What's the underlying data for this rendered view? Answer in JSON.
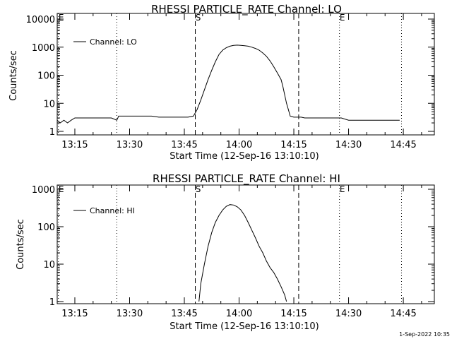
{
  "colors": {
    "background": "#ffffff",
    "foreground": "#000000"
  },
  "timestamp": "1-Sep-2022 10:35",
  "chart_data": [
    {
      "type": "line",
      "title": "RHESSI PARTICLE_RATE Channel: LO",
      "xlabel": "Start Time (12-Sep-16 13:10:10)",
      "ylabel": "Counts/sec",
      "y_scale": "log",
      "ylim": [
        1,
        10000
      ],
      "y_ticks": [
        {
          "value": 1,
          "label": "1"
        },
        {
          "value": 10,
          "label": "10"
        },
        {
          "value": 100,
          "label": "100"
        },
        {
          "value": 1000,
          "label": "1000"
        },
        {
          "value": 10000,
          "label": "10000"
        }
      ],
      "xlim": [
        "13:10:10",
        "14:53:30"
      ],
      "x_ticks": [
        "13:15",
        "13:30",
        "13:45",
        "14:00",
        "14:15",
        "14:30",
        "14:45"
      ],
      "legend": {
        "position": "top-left",
        "entries": [
          "Channel: LO"
        ]
      },
      "markers": [
        {
          "time": "13:10:30",
          "style": "dotted",
          "label": "E"
        },
        {
          "time": "13:26:30",
          "style": "dotted",
          "label": ""
        },
        {
          "time": "13:48:00",
          "style": "dashed",
          "label": "S"
        },
        {
          "time": "14:16:20",
          "style": "dashed",
          "label": ""
        },
        {
          "time": "14:27:30",
          "style": "dotted",
          "label": "E"
        },
        {
          "time": "14:44:30",
          "style": "dotted",
          "label": ""
        }
      ],
      "series": [
        {
          "name": "Channel: LO",
          "x": [
            "13:10:10",
            "13:11:00",
            "13:12:00",
            "13:13:00",
            "13:14:00",
            "13:15:00",
            "13:17:00",
            "13:19:00",
            "13:21:00",
            "13:23:00",
            "13:25:00",
            "13:26:30",
            "13:27:00",
            "13:28:00",
            "13:30:00",
            "13:32:00",
            "13:34:00",
            "13:36:00",
            "13:38:00",
            "13:40:00",
            "13:42:00",
            "13:44:00",
            "13:46:00",
            "13:47:30",
            "13:48:30",
            "13:49:30",
            "13:50:30",
            "13:51:30",
            "13:52:30",
            "13:53:30",
            "13:54:30",
            "13:55:30",
            "13:56:30",
            "13:57:30",
            "13:58:30",
            "13:59:30",
            "14:00:30",
            "14:01:30",
            "14:02:30",
            "14:03:30",
            "14:04:30",
            "14:05:30",
            "14:06:30",
            "14:07:30",
            "14:08:30",
            "14:09:30",
            "14:10:30",
            "14:11:30",
            "14:12:00",
            "14:12:30",
            "14:13:00",
            "14:13:30",
            "14:14:00",
            "14:15:00",
            "14:16:00",
            "14:17:00",
            "14:18:00",
            "14:20:00",
            "14:22:00",
            "14:24:00",
            "14:26:00",
            "14:28:00",
            "14:30:00",
            "14:32:00",
            "14:34:00",
            "14:36:00",
            "14:38:00",
            "14:40:00",
            "14:42:00",
            "14:44:00"
          ],
          "y": [
            2.5,
            2.0,
            2.5,
            2.0,
            2.5,
            3.0,
            3.0,
            3.0,
            3.0,
            3.0,
            3.0,
            2.5,
            3.5,
            3.5,
            3.5,
            3.5,
            3.5,
            3.5,
            3.2,
            3.2,
            3.2,
            3.2,
            3.2,
            3.5,
            6,
            13,
            30,
            70,
            150,
            300,
            550,
            780,
            950,
            1080,
            1150,
            1180,
            1160,
            1120,
            1080,
            1000,
            900,
            780,
            620,
            470,
            320,
            200,
            120,
            70,
            40,
            20,
            10,
            6,
            3.5,
            3.2,
            3.2,
            3.2,
            3.0,
            3.0,
            3.0,
            3.0,
            3.0,
            3.0,
            2.5,
            2.5,
            2.5,
            2.5,
            2.5,
            2.5,
            2.5,
            2.5
          ]
        }
      ]
    },
    {
      "type": "line",
      "title": "RHESSI PARTICLE_RATE Channel: HI",
      "xlabel": "Start Time (12-Sep-16 13:10:10)",
      "ylabel": "Counts/sec",
      "y_scale": "log",
      "ylim": [
        1,
        1000
      ],
      "y_ticks": [
        {
          "value": 1,
          "label": "1"
        },
        {
          "value": 10,
          "label": "10"
        },
        {
          "value": 100,
          "label": "100"
        },
        {
          "value": 1000,
          "label": "1000"
        }
      ],
      "xlim": [
        "13:10:10",
        "14:53:30"
      ],
      "x_ticks": [
        "13:15",
        "13:30",
        "13:45",
        "14:00",
        "14:15",
        "14:30",
        "14:45"
      ],
      "legend": {
        "position": "top-left",
        "entries": [
          "Channel: HI"
        ]
      },
      "markers": [
        {
          "time": "13:10:30",
          "style": "dotted",
          "label": "E"
        },
        {
          "time": "13:26:30",
          "style": "dotted",
          "label": ""
        },
        {
          "time": "13:48:00",
          "style": "dashed",
          "label": "S"
        },
        {
          "time": "14:16:20",
          "style": "dashed",
          "label": ""
        },
        {
          "time": "14:27:30",
          "style": "dotted",
          "label": "E"
        },
        {
          "time": "14:44:30",
          "style": "dotted",
          "label": ""
        }
      ],
      "series": [
        {
          "name": "Channel: HI",
          "x": [
            "13:49:00",
            "13:49:30",
            "13:50:30",
            "13:51:30",
            "13:52:30",
            "13:53:30",
            "13:54:30",
            "13:55:30",
            "13:56:30",
            "13:57:30",
            "13:58:30",
            "13:59:30",
            "14:00:30",
            "14:01:30",
            "14:02:30",
            "14:03:30",
            "14:04:30",
            "14:05:30",
            "14:06:30",
            "14:07:30",
            "14:08:30",
            "14:09:30",
            "14:10:30",
            "14:11:30",
            "14:12:30",
            "14:13:00"
          ],
          "y": [
            1,
            3,
            10,
            30,
            70,
            130,
            200,
            280,
            350,
            390,
            380,
            340,
            280,
            200,
            130,
            80,
            50,
            30,
            20,
            12,
            8,
            6,
            4,
            2.5,
            1.5,
            1
          ]
        }
      ]
    }
  ]
}
